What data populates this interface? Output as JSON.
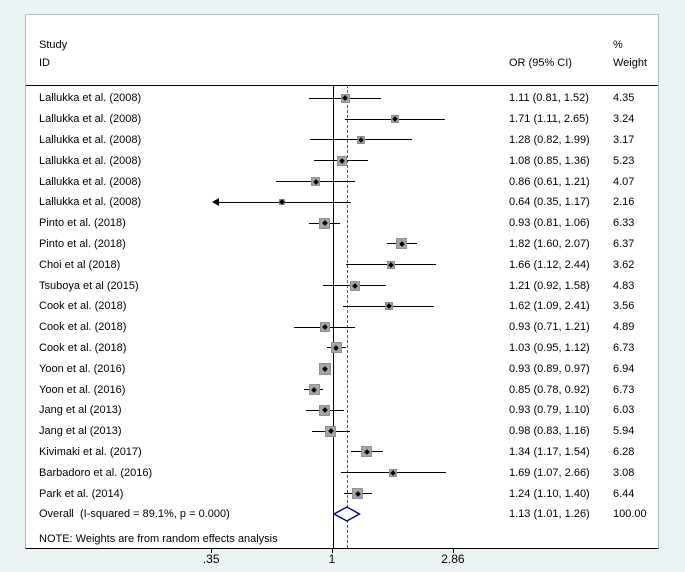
{
  "colors": {
    "background": "#eaf2f3",
    "plot_background": "#ffffff",
    "frame_border": "#aebfc1",
    "axis_line": "#000000",
    "ci_line": "#000000",
    "marker_fill": "#a6a6a6",
    "marker_border": "#8f8f8f",
    "null_line": "#000000",
    "overall_dashed_line": "#9e3b3b",
    "diamond_outline": "#00008b",
    "text": "#000000"
  },
  "header": {
    "study_line1": "Study",
    "study_line2": "ID",
    "or_label": "OR (95% CI)",
    "weight_line1": "%",
    "weight_line2": "Weight"
  },
  "note": "NOTE: Weights are from random effects analysis",
  "chart_data": {
    "type": "forest",
    "x_scale": "log",
    "null_value": 1,
    "xlim": [
      0.35,
      2.86
    ],
    "x_ticks": [
      {
        "value": 0.35,
        "label": ".35"
      },
      {
        "value": 1,
        "label": "1"
      },
      {
        "value": 2.86,
        "label": "2.86"
      }
    ],
    "studies": [
      {
        "label": "Lallukka et al. (2008)",
        "or": 1.11,
        "ci_low": 0.81,
        "ci_high": 1.52,
        "or_ci_text": "1.11 (0.81, 1.52)",
        "weight": 4.35,
        "weight_text": "4.35"
      },
      {
        "label": "Lallukka et al. (2008)",
        "or": 1.71,
        "ci_low": 1.11,
        "ci_high": 2.65,
        "or_ci_text": "1.71 (1.11, 2.65)",
        "weight": 3.24,
        "weight_text": "3.24"
      },
      {
        "label": "Lallukka et al. (2008)",
        "or": 1.28,
        "ci_low": 0.82,
        "ci_high": 1.99,
        "or_ci_text": "1.28 (0.82, 1.99)",
        "weight": 3.17,
        "weight_text": "3.17"
      },
      {
        "label": "Lallukka et al. (2008)",
        "or": 1.08,
        "ci_low": 0.85,
        "ci_high": 1.36,
        "or_ci_text": "1.08 (0.85, 1.36)",
        "weight": 5.23,
        "weight_text": "5.23"
      },
      {
        "label": "Lallukka et al. (2008)",
        "or": 0.86,
        "ci_low": 0.61,
        "ci_high": 1.21,
        "or_ci_text": "0.86 (0.61, 1.21)",
        "weight": 4.07,
        "weight_text": "4.07"
      },
      {
        "label": "Lallukka et al. (2008)",
        "or": 0.64,
        "ci_low": 0.35,
        "ci_high": 1.17,
        "or_ci_text": "0.64 (0.35, 1.17)",
        "weight": 2.16,
        "weight_text": "2.16",
        "clipped_low": true
      },
      {
        "label": "Pinto et al. (2018)",
        "or": 0.93,
        "ci_low": 0.81,
        "ci_high": 1.06,
        "or_ci_text": "0.93 (0.81, 1.06)",
        "weight": 6.33,
        "weight_text": "6.33"
      },
      {
        "label": "Pinto et al. (2018)",
        "or": 1.82,
        "ci_low": 1.6,
        "ci_high": 2.07,
        "or_ci_text": "1.82 (1.60, 2.07)",
        "weight": 6.37,
        "weight_text": "6.37"
      },
      {
        "label": "Choi et al (2018)",
        "or": 1.66,
        "ci_low": 1.12,
        "ci_high": 2.44,
        "or_ci_text": "1.66 (1.12, 2.44)",
        "weight": 3.62,
        "weight_text": "3.62"
      },
      {
        "label": "Tsuboya et al (2015)",
        "or": 1.21,
        "ci_low": 0.92,
        "ci_high": 1.58,
        "or_ci_text": "1.21 (0.92, 1.58)",
        "weight": 4.83,
        "weight_text": "4.83"
      },
      {
        "label": "Cook et al. (2018)",
        "or": 1.62,
        "ci_low": 1.09,
        "ci_high": 2.41,
        "or_ci_text": "1.62 (1.09, 2.41)",
        "weight": 3.56,
        "weight_text": "3.56"
      },
      {
        "label": "Cook et al. (2018)",
        "or": 0.93,
        "ci_low": 0.71,
        "ci_high": 1.21,
        "or_ci_text": "0.93 (0.71, 1.21)",
        "weight": 4.89,
        "weight_text": "4.89"
      },
      {
        "label": "Cook et al. (2018)",
        "or": 1.03,
        "ci_low": 0.95,
        "ci_high": 1.12,
        "or_ci_text": "1.03 (0.95, 1.12)",
        "weight": 6.73,
        "weight_text": "6.73"
      },
      {
        "label": "Yoon et al. (2016)",
        "or": 0.93,
        "ci_low": 0.89,
        "ci_high": 0.97,
        "or_ci_text": "0.93 (0.89, 0.97)",
        "weight": 6.94,
        "weight_text": "6.94"
      },
      {
        "label": "Yoon et al. (2016)",
        "or": 0.85,
        "ci_low": 0.78,
        "ci_high": 0.92,
        "or_ci_text": "0.85 (0.78, 0.92)",
        "weight": 6.73,
        "weight_text": "6.73"
      },
      {
        "label": "Jang et al (2013)",
        "or": 0.93,
        "ci_low": 0.79,
        "ci_high": 1.1,
        "or_ci_text": "0.93 (0.79, 1.10)",
        "weight": 6.03,
        "weight_text": "6.03"
      },
      {
        "label": "Jang et al (2013)",
        "or": 0.98,
        "ci_low": 0.83,
        "ci_high": 1.16,
        "or_ci_text": "0.98 (0.83, 1.16)",
        "weight": 5.94,
        "weight_text": "5.94"
      },
      {
        "label": "Kivimaki et al. (2017)",
        "or": 1.34,
        "ci_low": 1.17,
        "ci_high": 1.54,
        "or_ci_text": "1.34 (1.17, 1.54)",
        "weight": 6.28,
        "weight_text": "6.28"
      },
      {
        "label": "Barbadoro et al. (2016)",
        "or": 1.69,
        "ci_low": 1.07,
        "ci_high": 2.66,
        "or_ci_text": "1.69 (1.07, 2.66)",
        "weight": 3.08,
        "weight_text": "3.08"
      },
      {
        "label": "Park et al. (2014)",
        "or": 1.24,
        "ci_low": 1.1,
        "ci_high": 1.4,
        "or_ci_text": "1.24 (1.10, 1.40)",
        "weight": 6.44,
        "weight_text": "6.44"
      }
    ],
    "overall": {
      "label": "Overall  (I-squared = 89.1%, p = 0.000)",
      "or": 1.13,
      "ci_low": 1.01,
      "ci_high": 1.26,
      "or_ci_text": "1.13 (1.01, 1.26)",
      "weight_text": "100.00"
    }
  }
}
